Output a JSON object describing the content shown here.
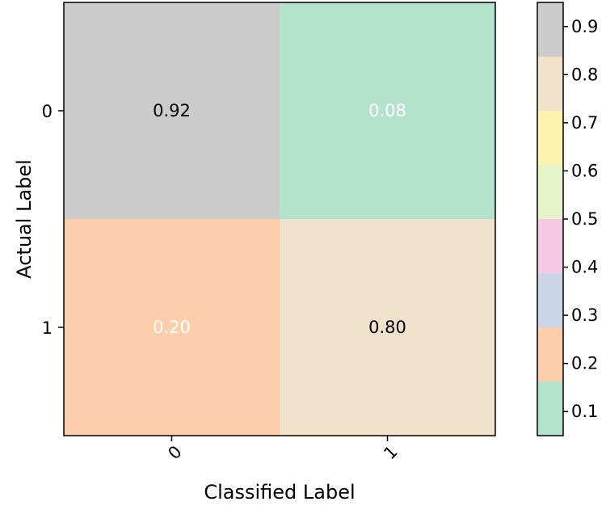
{
  "chart_data": {
    "type": "heatmap",
    "title": "",
    "xlabel": "Classified Label",
    "ylabel": "Actual Label",
    "x_categories": [
      "0",
      "1"
    ],
    "y_categories": [
      "0",
      "1"
    ],
    "values": [
      [
        0.92,
        0.08
      ],
      [
        0.2,
        0.8
      ]
    ],
    "cell_labels": [
      [
        "0.92",
        "0.08"
      ],
      [
        "0.20",
        "0.80"
      ]
    ],
    "cell_label_colors": [
      [
        "#000000",
        "#ffffff"
      ],
      [
        "#ffffff",
        "#000000"
      ]
    ],
    "x_tick_rotation": -45,
    "colormap": "Pastel2",
    "colorbar": {
      "location": "right",
      "range": [
        0.05,
        0.95
      ],
      "bands": [
        {
          "from": 0.05,
          "to": 0.1625,
          "color": "#b3e2cd"
        },
        {
          "from": 0.1625,
          "to": 0.275,
          "color": "#fdcdac"
        },
        {
          "from": 0.275,
          "to": 0.3875,
          "color": "#cbd5e8"
        },
        {
          "from": 0.3875,
          "to": 0.5,
          "color": "#f4cae4"
        },
        {
          "from": 0.5,
          "to": 0.6125,
          "color": "#e6f5c9"
        },
        {
          "from": 0.6125,
          "to": 0.725,
          "color": "#fff2ae"
        },
        {
          "from": 0.725,
          "to": 0.8375,
          "color": "#f1e2cc"
        },
        {
          "from": 0.8375,
          "to": 0.95,
          "color": "#cccccc"
        }
      ],
      "ticks": [
        0.1,
        0.2,
        0.3,
        0.4,
        0.5,
        0.6,
        0.7,
        0.8,
        0.9
      ],
      "tick_labels": [
        "0.1",
        "0.2",
        "0.3",
        "0.4",
        "0.5",
        "0.6",
        "0.7",
        "0.8",
        "0.9"
      ]
    }
  }
}
